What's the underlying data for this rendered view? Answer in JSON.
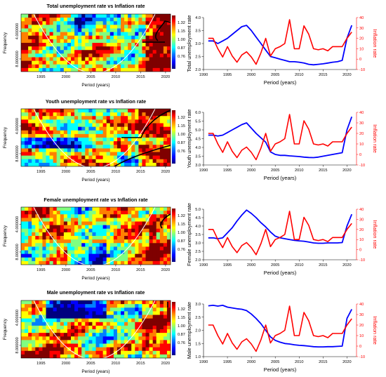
{
  "colors": {
    "unemployment": "#0000ff",
    "inflation": "#ff0000",
    "coi": "#ffffff",
    "significance": "#000000"
  },
  "wavelet_common": {
    "xlabel": "Period (years)",
    "ylabel": "Frequency",
    "x_ticks": [
      "1995",
      "2000",
      "2005",
      "2010",
      "2015",
      "2020"
    ],
    "y_ticks": [
      "4.000000",
      "8.000000"
    ],
    "legend_ticks": [
      "1.32",
      "1.15",
      "1.00",
      "0.87",
      "0.76"
    ],
    "colormap": [
      "#00007f",
      "#0000ff",
      "#0080ff",
      "#00ffff",
      "#80ff80",
      "#ffff00",
      "#ff8000",
      "#ff0000",
      "#7f0000"
    ]
  },
  "chart_data": [
    {
      "type": "heatmap",
      "title": "Total unemployment rate vs Inflation rate",
      "xlabel": "Period (years)",
      "ylabel": "Frequency",
      "xlim": [
        1991,
        2021
      ]
    },
    {
      "type": "line",
      "xlabel": "Period (years)",
      "ylabel": "Total unemployment rate",
      "y2label": "Inflation rate",
      "x": [
        1991,
        1992,
        1993,
        1994,
        1995,
        1996,
        1997,
        1998,
        1999,
        2000,
        2001,
        2002,
        2003,
        2004,
        2005,
        2006,
        2007,
        2008,
        2009,
        2010,
        2011,
        2012,
        2013,
        2014,
        2015,
        2016,
        2017,
        2018,
        2019,
        2020,
        2021
      ],
      "ylim": [
        2.0,
        4.0
      ],
      "y_ticks": [
        "2.0",
        "2.5",
        "3.0",
        "3.5",
        "4.0"
      ],
      "y2lim": [
        -10,
        40
      ],
      "y2_ticks": [
        "-10",
        "0",
        "10",
        "20",
        "30",
        "40"
      ],
      "series": [
        {
          "axis": "left",
          "values": [
            3.1,
            3.1,
            3.0,
            3.1,
            3.2,
            3.35,
            3.5,
            3.65,
            3.7,
            3.5,
            3.25,
            3.0,
            2.75,
            2.5,
            2.45,
            2.4,
            2.35,
            2.3,
            2.3,
            2.28,
            2.25,
            2.2,
            2.18,
            2.2,
            2.22,
            2.25,
            2.28,
            2.3,
            2.35,
            3.2,
            3.7
          ]
        },
        {
          "axis": "right",
          "values": [
            20,
            20,
            10,
            2,
            12,
            3,
            -3,
            4,
            7,
            2,
            -5,
            6,
            20,
            3,
            10,
            12,
            15,
            38,
            10,
            10,
            32,
            24,
            10,
            9,
            10,
            8,
            12,
            12,
            12,
            20,
            26
          ]
        }
      ]
    },
    {
      "type": "heatmap",
      "title": "Youth unemployment rate vs Inflation rate",
      "xlabel": "Period (years)",
      "ylabel": "Frequency",
      "xlim": [
        1991,
        2021
      ]
    },
    {
      "type": "line",
      "xlabel": "Period (years)",
      "ylabel": "Youth unemployment rate",
      "y2label": "Inflation rate",
      "x": [
        1991,
        1992,
        1993,
        1994,
        1995,
        1996,
        1997,
        1998,
        1999,
        2000,
        2001,
        2002,
        2003,
        2004,
        2005,
        2006,
        2007,
        2008,
        2009,
        2010,
        2011,
        2012,
        2013,
        2014,
        2015,
        2016,
        2017,
        2018,
        2019,
        2020,
        2021
      ],
      "ylim": [
        3.0,
        6.0
      ],
      "y_ticks": [
        "3.0",
        "3.5",
        "4.0",
        "4.5",
        "5.0",
        "5.5",
        "6.0"
      ],
      "y2lim": [
        -10,
        40
      ],
      "y2_ticks": [
        "-10",
        "0",
        "10",
        "20",
        "30",
        "40"
      ],
      "series": [
        {
          "axis": "left",
          "values": [
            4.7,
            4.7,
            4.65,
            4.7,
            4.85,
            5.0,
            5.15,
            5.3,
            5.4,
            5.1,
            4.8,
            4.55,
            4.3,
            3.75,
            3.6,
            3.55,
            3.55,
            3.52,
            3.5,
            3.48,
            3.45,
            3.43,
            3.42,
            3.45,
            3.5,
            3.55,
            3.6,
            3.65,
            3.7,
            5.0,
            5.75
          ]
        },
        {
          "axis": "right",
          "values": [
            20,
            20,
            10,
            2,
            12,
            3,
            -3,
            4,
            7,
            2,
            -5,
            6,
            20,
            3,
            10,
            12,
            15,
            38,
            10,
            10,
            32,
            24,
            10,
            9,
            10,
            8,
            12,
            12,
            12,
            20,
            26
          ]
        }
      ]
    },
    {
      "type": "heatmap",
      "title": "Female unemployment rate vs Inflation rate",
      "xlabel": "Period (years)",
      "ylabel": "Frequency",
      "xlim": [
        1991,
        2021
      ]
    },
    {
      "type": "line",
      "xlabel": "Period (years)",
      "ylabel": "Female unemployment rate",
      "y2label": "Inflation rate",
      "x": [
        1991,
        1992,
        1993,
        1994,
        1995,
        1996,
        1997,
        1998,
        1999,
        2000,
        2001,
        2002,
        2003,
        2004,
        2005,
        2006,
        2007,
        2008,
        2009,
        2010,
        2011,
        2012,
        2013,
        2014,
        2015,
        2016,
        2017,
        2018,
        2019,
        2020,
        2021
      ],
      "ylim": [
        2.0,
        5.0
      ],
      "y_ticks": [
        "2.0",
        "2.5",
        "3.0",
        "3.5",
        "4.0",
        "4.5",
        "5.0"
      ],
      "y2lim": [
        -10,
        40
      ],
      "y2_ticks": [
        "-10",
        "0",
        "10",
        "20",
        "30",
        "40"
      ],
      "series": [
        {
          "axis": "left",
          "values": [
            3.3,
            3.3,
            3.25,
            3.3,
            3.6,
            3.9,
            4.3,
            4.65,
            4.95,
            4.75,
            4.5,
            4.2,
            3.95,
            3.65,
            3.4,
            3.3,
            3.25,
            3.2,
            3.15,
            3.12,
            3.1,
            3.05,
            3.0,
            2.98,
            2.98,
            3.0,
            3.0,
            3.0,
            3.02,
            4.0,
            4.7
          ]
        },
        {
          "axis": "right",
          "values": [
            20,
            20,
            10,
            2,
            12,
            3,
            -3,
            4,
            7,
            2,
            -5,
            6,
            20,
            3,
            10,
            12,
            15,
            38,
            10,
            10,
            32,
            24,
            10,
            9,
            10,
            8,
            12,
            12,
            12,
            20,
            26
          ]
        }
      ]
    },
    {
      "type": "heatmap",
      "title": "Male unemployment rate vs Inflation rate",
      "xlabel": "Period (years)",
      "ylabel": "Frequency",
      "xlim": [
        1991,
        2021
      ]
    },
    {
      "type": "line",
      "xlabel": "Period (years)",
      "ylabel": "Male unemployment rate",
      "y2label": "Inflation rate",
      "x": [
        1991,
        1992,
        1993,
        1994,
        1995,
        1996,
        1997,
        1998,
        1999,
        2000,
        2001,
        2002,
        2003,
        2004,
        2005,
        2006,
        2007,
        2008,
        2009,
        2010,
        2011,
        2012,
        2013,
        2014,
        2015,
        2016,
        2017,
        2018,
        2019,
        2020,
        2021
      ],
      "ylim": [
        1.0,
        3.0
      ],
      "y_ticks": [
        "1.0",
        "1.5",
        "2.0",
        "2.5",
        "3.0"
      ],
      "y2lim": [
        -10,
        40
      ],
      "y2_ticks": [
        "-10",
        "0",
        "10",
        "20",
        "30",
        "40"
      ],
      "series": [
        {
          "axis": "left",
          "values": [
            2.93,
            2.95,
            2.92,
            2.95,
            2.88,
            2.85,
            2.82,
            2.8,
            2.75,
            2.62,
            2.45,
            2.25,
            2.0,
            1.75,
            1.62,
            1.55,
            1.5,
            1.48,
            1.45,
            1.43,
            1.42,
            1.4,
            1.38,
            1.37,
            1.37,
            1.38,
            1.38,
            1.39,
            1.4,
            2.45,
            2.8
          ]
        },
        {
          "axis": "right",
          "values": [
            20,
            20,
            10,
            2,
            12,
            3,
            -3,
            4,
            7,
            2,
            -5,
            6,
            20,
            3,
            10,
            12,
            15,
            38,
            10,
            10,
            32,
            24,
            10,
            9,
            10,
            8,
            12,
            12,
            12,
            20,
            26
          ]
        }
      ]
    }
  ]
}
